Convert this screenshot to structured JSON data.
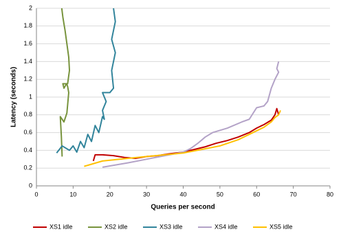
{
  "chart_data": {
    "type": "line",
    "xlabel": "Queries per second",
    "ylabel": "Latency (seconds)",
    "xlim": [
      0,
      80
    ],
    "xticks": [
      0,
      10,
      20,
      30,
      40,
      50,
      60,
      70,
      80
    ],
    "ylim": [
      0,
      2
    ],
    "yticks": [
      0,
      0.2,
      0.4,
      0.6,
      0.8,
      1,
      1.2,
      1.4,
      1.6,
      1.8,
      2
    ],
    "grid": true,
    "legend": "bottom",
    "series": [
      {
        "name": "XS1 idle",
        "color": "#c00000",
        "x": [
          15.5,
          16,
          18,
          21,
          24,
          27,
          30,
          33,
          36,
          40,
          43,
          46,
          49,
          52,
          55,
          58,
          60,
          62,
          64,
          65,
          65.5,
          66
        ],
        "values": [
          0.28,
          0.35,
          0.35,
          0.34,
          0.32,
          0.31,
          0.33,
          0.34,
          0.36,
          0.38,
          0.41,
          0.44,
          0.48,
          0.51,
          0.55,
          0.6,
          0.65,
          0.69,
          0.74,
          0.8,
          0.87,
          0.8
        ]
      },
      {
        "name": "XS2 idle",
        "color": "#77933c",
        "x": [
          7,
          6.8,
          6.5,
          7,
          7.5,
          8.3,
          8.8,
          8.5,
          8.2,
          7.5,
          7.2,
          8.5,
          9,
          8.8,
          8.3,
          7.8,
          7.2,
          6.9
        ],
        "values": [
          0.33,
          0.55,
          0.78,
          0.75,
          0.72,
          0.82,
          1.05,
          1.12,
          1.15,
          1.1,
          1.15,
          1.15,
          1.3,
          1.45,
          1.6,
          1.75,
          1.9,
          2
        ]
      },
      {
        "name": "XS3 idle",
        "color": "#31849b",
        "x": [
          5.5,
          7,
          9,
          10,
          11,
          12,
          13,
          14,
          15,
          16,
          17,
          18,
          18.5,
          18,
          19,
          18,
          20,
          21,
          20.5,
          21.5,
          20.5,
          21.5,
          21
        ],
        "values": [
          0.37,
          0.45,
          0.4,
          0.45,
          0.38,
          0.5,
          0.43,
          0.58,
          0.5,
          0.68,
          0.6,
          0.78,
          0.75,
          0.85,
          0.95,
          1.05,
          1.05,
          1.1,
          1.3,
          1.5,
          1.65,
          1.85,
          2
        ]
      },
      {
        "name": "XS4 idle",
        "color": "#b3a2c7",
        "x": [
          18,
          25,
          30,
          35,
          40,
          42,
          44,
          46,
          48,
          52,
          56,
          58,
          60,
          62,
          63,
          64,
          65,
          66,
          65.5,
          66
        ],
        "values": [
          0.21,
          0.26,
          0.3,
          0.34,
          0.38,
          0.42,
          0.48,
          0.55,
          0.6,
          0.65,
          0.72,
          0.75,
          0.88,
          0.9,
          0.95,
          1.1,
          1.2,
          1.28,
          1.32,
          1.4
        ]
      },
      {
        "name": "XS5 idle",
        "color": "#ffc000",
        "x": [
          13,
          18,
          25,
          30,
          35,
          40,
          45,
          50,
          55,
          58,
          62,
          64,
          65,
          66,
          66.5
        ],
        "values": [
          0.22,
          0.28,
          0.31,
          0.33,
          0.35,
          0.37,
          0.41,
          0.45,
          0.52,
          0.58,
          0.66,
          0.72,
          0.77,
          0.8,
          0.85
        ]
      }
    ]
  }
}
